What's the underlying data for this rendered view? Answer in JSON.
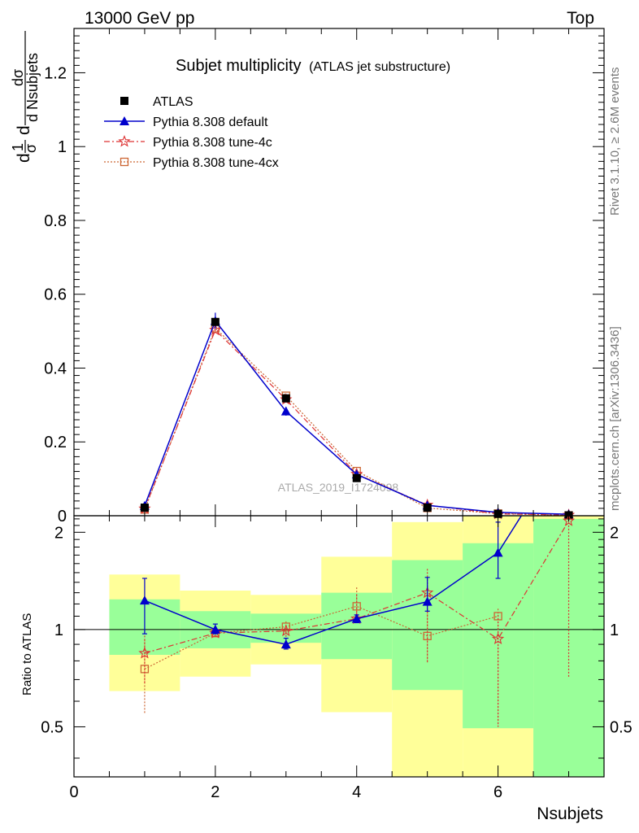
{
  "header": {
    "left": "13000 GeV pp",
    "right": "Top"
  },
  "side_text": {
    "rivet": "Rivet 3.1.10, ≥ 2.6M events",
    "mcplots": "mcplots.cern.ch [arXiv:1306.3436]"
  },
  "title": {
    "main": "Subjet multiplicity",
    "sub": "(ATLAS jet substructure)"
  },
  "watermark": "ATLAS_2019_I1724098",
  "colors": {
    "atlas": "#000000",
    "default": "#0000cc",
    "tune4c": "#dd3333",
    "tune4cx": "#cc6633",
    "band_outer": "#ffff99",
    "band_inner": "#99ff99"
  },
  "chart_data": [
    {
      "type": "line",
      "panel": "main",
      "ylabel_parts": {
        "d": "d",
        "one": "1",
        "sigma": "σ",
        "num": "dσ",
        "den": "d Nsubjets"
      },
      "xlim": [
        0,
        7.5
      ],
      "ylim": [
        0,
        1.32
      ],
      "y_ticks": [
        0,
        0.2,
        0.4,
        0.6,
        0.8,
        1,
        1.2
      ],
      "y_tick_labels": [
        "0",
        "0.2",
        "0.4",
        "0.6",
        "0.8",
        "1",
        "1.2"
      ],
      "legend_position": "top-left",
      "series": [
        {
          "name": "ATLAS",
          "key": "atlas",
          "marker": "square",
          "x": [
            1,
            2,
            3,
            4,
            5,
            6,
            7
          ],
          "y": [
            0.022,
            0.525,
            0.318,
            0.102,
            0.022,
            0.005,
            0.001
          ]
        },
        {
          "name": "Pythia 8.308 default",
          "key": "default",
          "marker": "triangle",
          "x": [
            1,
            2,
            3,
            4,
            5,
            6,
            7
          ],
          "y": [
            0.027,
            0.528,
            0.283,
            0.112,
            0.028,
            0.009,
            0.004
          ],
          "err": [
            0.003,
            0.022,
            0.012,
            0.006,
            0.003,
            0.002,
            0.002
          ]
        },
        {
          "name": "Pythia 8.308 tune-4c",
          "key": "tune4c",
          "marker": "star",
          "x": [
            1,
            2,
            3,
            4,
            5,
            6,
            7
          ],
          "y": [
            0.019,
            0.503,
            0.315,
            0.113,
            0.029,
            0.005,
            0.002
          ]
        },
        {
          "name": "Pythia 8.308 tune-4cx",
          "key": "tune4cx",
          "marker": "open-square",
          "x": [
            1,
            2,
            3,
            4,
            5,
            6,
            7
          ],
          "y": [
            0.017,
            0.508,
            0.325,
            0.121,
            0.021,
            0.006,
            0.001
          ]
        }
      ]
    },
    {
      "type": "line",
      "panel": "ratio",
      "xlabel": "Nsubjets",
      "ylabel": "Ratio to ATLAS",
      "xlim": [
        0,
        7.5
      ],
      "ylim": [
        0.35,
        2.25
      ],
      "x_ticks": [
        0,
        2,
        4,
        6
      ],
      "x_tick_labels": [
        "0",
        "2",
        "4",
        "6"
      ],
      "y_ticks": [
        0.5,
        1,
        2
      ],
      "y_tick_labels": [
        "0.5",
        "1",
        "2"
      ],
      "bands": [
        {
          "x": [
            0.5,
            1.5
          ],
          "outer": [
            0.645,
            1.48
          ],
          "inner": [
            0.835,
            1.24
          ]
        },
        {
          "x": [
            1.5,
            2.5
          ],
          "outer": [
            0.715,
            1.32
          ],
          "inner": [
            0.875,
            1.14
          ]
        },
        {
          "x": [
            2.5,
            3.5
          ],
          "outer": [
            0.78,
            1.28
          ],
          "inner": [
            0.91,
            1.12
          ]
        },
        {
          "x": [
            3.5,
            4.5
          ],
          "outer": [
            0.555,
            1.68
          ],
          "inner": [
            0.81,
            1.3
          ]
        },
        {
          "x": [
            4.5,
            5.5
          ],
          "outer": [
            0.35,
            2.15
          ],
          "inner": [
            0.65,
            1.64
          ]
        },
        {
          "x": [
            5.5,
            6.5
          ],
          "outer": [
            0.35,
            2.25
          ],
          "inner": [
            0.495,
            1.85
          ]
        },
        {
          "x": [
            6.5,
            7.5
          ],
          "outer": [
            0.35,
            2.25
          ],
          "inner": [
            0.35,
            2.2
          ]
        }
      ],
      "series": [
        {
          "name": "Pythia 8.308 default",
          "key": "default",
          "marker": "triangle",
          "x": [
            1,
            2,
            3,
            4,
            5,
            6,
            6.33
          ],
          "y": [
            1.23,
            1.0,
            0.9,
            1.08,
            1.22,
            1.73,
            2.25
          ],
          "err_lo": [
            0.97,
            0.97,
            0.87,
            1.05,
            1.14,
            1.44,
            null
          ],
          "err_hi": [
            1.44,
            1.04,
            0.94,
            1.11,
            1.45,
            2.15,
            null
          ]
        },
        {
          "name": "Pythia 8.308 tune-4c",
          "key": "tune4c",
          "marker": "star",
          "x": [
            1,
            2,
            3,
            4,
            5,
            6,
            7
          ],
          "y": [
            0.845,
            0.975,
            0.99,
            1.08,
            1.3,
            0.935,
            2.17
          ],
          "err_lo": [
            0.68,
            0.95,
            0.95,
            1.04,
            0.79,
            0.5,
            0.71
          ],
          "err_hi": [
            0.98,
            1.0,
            1.03,
            1.28,
            1.54,
            1.11,
            2.2
          ]
        },
        {
          "name": "Pythia 8.308 tune-4cx",
          "key": "tune4cx",
          "marker": "open-square",
          "x": [
            1,
            2,
            3,
            4,
            5,
            6
          ],
          "y": [
            0.755,
            0.975,
            1.02,
            1.18,
            0.955,
            1.1
          ],
          "err_lo": [
            0.55,
            0.95,
            0.98,
            1.1,
            0.79,
            0.5
          ],
          "err_hi": [
            0.93,
            1.0,
            1.06,
            1.35,
            1.43,
            1.16
          ]
        }
      ]
    }
  ]
}
